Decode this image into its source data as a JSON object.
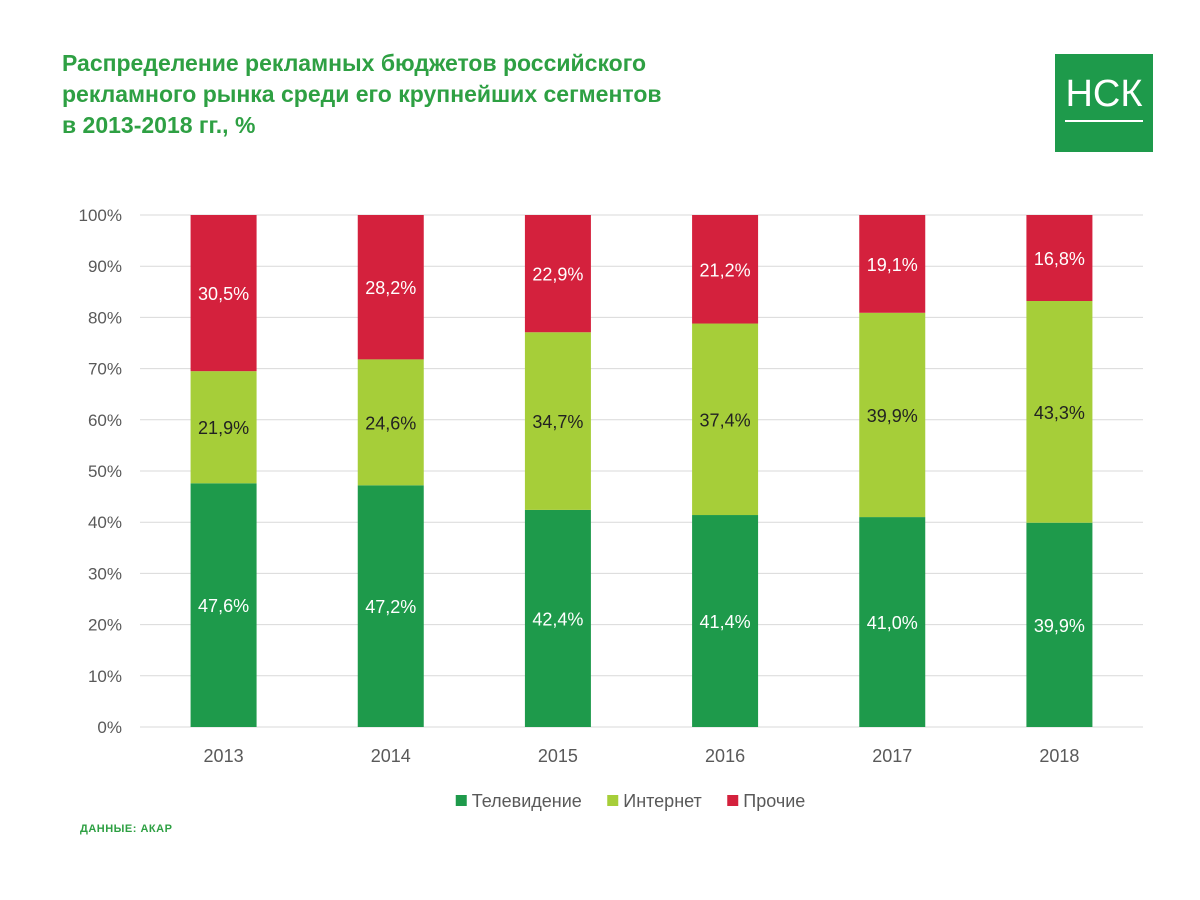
{
  "title": {
    "line1": "Распределение рекламных бюджетов российского",
    "line2": "рекламного рынка среди его крупнейших сегментов",
    "line3": "в 2013-2018 гг., %"
  },
  "logo": {
    "text": "НСК"
  },
  "source": "ДАННЫЕ: АКАР",
  "colors": {
    "title": "#2ea043",
    "tv": "#1e9a4b",
    "internet": "#a6ce39",
    "other": "#d4213d",
    "grid": "#d9d9d9"
  },
  "chart_data": {
    "type": "bar",
    "stacked": true,
    "categories": [
      "2013",
      "2014",
      "2015",
      "2016",
      "2017",
      "2018"
    ],
    "series": [
      {
        "name": "Телевидение",
        "values": [
          47.6,
          47.2,
          42.4,
          41.4,
          41.0,
          39.9
        ],
        "labels": [
          "47,6%",
          "47,2%",
          "42,4%",
          "41,4%",
          "41,0%",
          "39,9%"
        ],
        "color": "#1e9a4b",
        "label_color": "#ffffff"
      },
      {
        "name": "Интернет",
        "values": [
          21.9,
          24.6,
          34.7,
          37.4,
          39.9,
          43.3
        ],
        "labels": [
          "21,9%",
          "24,6%",
          "34,7%",
          "37,4%",
          "39,9%",
          "43,3%"
        ],
        "color": "#a6ce39",
        "label_color": "#222222"
      },
      {
        "name": "Прочие",
        "values": [
          30.5,
          28.2,
          22.9,
          21.2,
          19.1,
          16.8
        ],
        "labels": [
          "30,5%",
          "28,2%",
          "22,9%",
          "21,2%",
          "19,1%",
          "16,8%"
        ],
        "color": "#d4213d",
        "label_color": "#ffffff"
      }
    ],
    "y_ticks": [
      "0%",
      "10%",
      "20%",
      "30%",
      "40%",
      "50%",
      "60%",
      "70%",
      "80%",
      "90%",
      "100%"
    ],
    "ylim": [
      0,
      100
    ],
    "grid": true,
    "legend": "bottom",
    "xlabel": "",
    "ylabel": ""
  }
}
